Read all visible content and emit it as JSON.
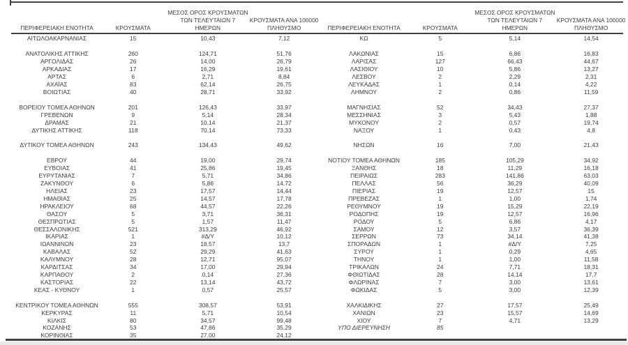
{
  "report": {
    "columns": [
      "ΠΕΡΙΦΕΡΕΙΑΚΗ ΕΝΟΤΗΤΑ",
      "ΚΡΟΥΣΜΑΤΑ",
      "ΜΕΣΟΣ ΟΡΟΣ ΚΡΟΥΣΜΑΤΩΝ\nΤΩΝ ΤΕΛΕΥΤΑΙΩΝ 7\nΗΜΕΡΩΝ",
      "ΚΡΟΥΣΜΑΤΑ ΑΝΑ 100000\nΠΛΗΘΥΣΜΟ"
    ],
    "na_text": "#Δ/Υ",
    "colors": {
      "text": "#3b3b3b",
      "rule": "#424242",
      "page_bg": "#ffffff",
      "footer_strip": "#e9e9e9"
    },
    "left_rows": [
      {
        "region": "ΑΙΤΩΛΟΑΚΑΡΝΑΝΙΑΣ",
        "cases": "15",
        "avg7": "10,43",
        "per100k": "7,12"
      },
      {
        "blank": true
      },
      {
        "region": "ΑΝΑΤΟΛΙΚΗΣ ΑΤΤΙΚΗΣ",
        "cases": "260",
        "avg7": "124,71",
        "per100k": "51,76"
      },
      {
        "region": "ΑΡΓΟΛΙΔΑΣ",
        "cases": "26",
        "avg7": "14,00",
        "per100k": "26,79"
      },
      {
        "region": "ΑΡΚΑΔΙΑΣ",
        "cases": "17",
        "avg7": "16,29",
        "per100k": "19,61"
      },
      {
        "region": "ΑΡΤΑΣ",
        "cases": "6",
        "avg7": "2,71",
        "per100k": "8,84"
      },
      {
        "region": "ΑΧΑΪΑΣ",
        "cases": "83",
        "avg7": "62,14",
        "per100k": "26,75"
      },
      {
        "region": "ΒΟΙΩΤΙΑΣ",
        "cases": "40",
        "avg7": "28,71",
        "per100k": "33,92"
      },
      {
        "blank": true
      },
      {
        "region": "ΒΟΡΕΙΟΥ ΤΟΜΕΑ ΑΘΗΝΩΝ",
        "cases": "201",
        "avg7": "126,43",
        "per100k": "33,97"
      },
      {
        "region": "ΓΡΕΒΕΝΩΝ",
        "cases": "9",
        "avg7": "5,14",
        "per100k": "28,34"
      },
      {
        "region": "ΔΡΑΜΑΣ",
        "cases": "21",
        "avg7": "10,14",
        "per100k": "21,37"
      },
      {
        "region": "ΔΥΤΙΚΗΣ ΑΤΤΙΚΗΣ",
        "cases": "118",
        "avg7": "70,14",
        "per100k": "73,33"
      },
      {
        "blank": true
      },
      {
        "region": "ΔΥΤΙΚΟΥ ΤΟΜΕΑ ΑΘΗΝΩΝ",
        "cases": "243",
        "avg7": "134,43",
        "per100k": "49,62"
      },
      {
        "blank": true
      },
      {
        "region": "ΕΒΡΟΥ",
        "cases": "44",
        "avg7": "19,00",
        "per100k": "29,74"
      },
      {
        "region": "ΕΥΒΟΙΑΣ",
        "cases": "41",
        "avg7": "25,86",
        "per100k": "19,45"
      },
      {
        "region": "ΕΥΡΥΤΑΝΙΑΣ",
        "cases": "7",
        "avg7": "5,71",
        "per100k": "34,86"
      },
      {
        "region": "ΖΑΚΥΝΘΟΥ",
        "cases": "6",
        "avg7": "5,86",
        "per100k": "14,72"
      },
      {
        "region": "ΗΛΕΙΑΣ",
        "cases": "23",
        "avg7": "17,57",
        "per100k": "14,44"
      },
      {
        "region": "ΗΜΑΘΙΑΣ",
        "cases": "25",
        "avg7": "14,57",
        "per100k": "17,78"
      },
      {
        "region": "ΗΡΑΚΛΕΙΟΥ",
        "cases": "68",
        "avg7": "44,57",
        "per100k": "22,26"
      },
      {
        "region": "ΘΑΣΟΥ",
        "cases": "5",
        "avg7": "3,71",
        "per100k": "36,31"
      },
      {
        "region": "ΘΕΣΠΡΩΤΙΑΣ",
        "cases": "5",
        "avg7": "1,57",
        "per100k": "11,47"
      },
      {
        "region": "ΘΕΣΣΑΛΟΝΙΚΗΣ",
        "cases": "521",
        "avg7": "313,29",
        "per100k": "46,92"
      },
      {
        "region": "ΙΚΑΡΙΑΣ",
        "cases": "1",
        "avg7": "#Δ/Υ",
        "per100k": "10,12"
      },
      {
        "region": "ΙΩΑΝΝΙΝΩΝ",
        "cases": "23",
        "avg7": "18,57",
        "per100k": "13,7"
      },
      {
        "region": "ΚΑΒΑΛΑΣ",
        "cases": "52",
        "avg7": "29,29",
        "per100k": "41,63"
      },
      {
        "region": "ΚΑΛΥΜΝΟΥ",
        "cases": "28",
        "avg7": "12,71",
        "per100k": "95,07"
      },
      {
        "region": "ΚΑΡΔΙΤΣΑΣ",
        "cases": "34",
        "avg7": "17,00",
        "per100k": "29,94"
      },
      {
        "region": "ΚΑΡΠΑΘΟΥ",
        "cases": "2",
        "avg7": "0,14",
        "per100k": "27,36"
      },
      {
        "region": "ΚΑΣΤΟΡΙΑΣ",
        "cases": "22",
        "avg7": "13,14",
        "per100k": "43,72"
      },
      {
        "region": "ΚΕΑΣ - ΚΥΘΝΟΥ",
        "cases": "1",
        "avg7": "0,57",
        "per100k": "25,57"
      },
      {
        "blank": true
      },
      {
        "region": "ΚΕΝΤΡΙΚΟΥ ΤΟΜΕΑ ΑΘΗΝΩΝ",
        "cases": "555",
        "avg7": "308,57",
        "per100k": "53,91"
      },
      {
        "region": "ΚΕΡΚΥΡΑΣ",
        "cases": "11",
        "avg7": "5,71",
        "per100k": "10,54"
      },
      {
        "region": "ΚΙΛΚΙΣ",
        "cases": "80",
        "avg7": "34,57",
        "per100k": "99,48"
      },
      {
        "region": "ΚΟΖΑΝΗΣ",
        "cases": "53",
        "avg7": "47,86",
        "per100k": "35,29"
      },
      {
        "region": "ΚΟΡΙΝΘΙΑΣ",
        "cases": "35",
        "avg7": "27,00",
        "per100k": "24,12"
      }
    ],
    "right_rows": [
      {
        "region": "ΚΩ",
        "cases": "5",
        "avg7": "5,14",
        "per100k": "14,54"
      },
      {
        "blank": true
      },
      {
        "region": "ΛΑΚΩΝΙΑΣ",
        "cases": "15",
        "avg7": "6,86",
        "per100k": "16,83"
      },
      {
        "region": "ΛΑΡΙΣΑΣ",
        "cases": "127",
        "avg7": "66,43",
        "per100k": "44,67"
      },
      {
        "region": "ΛΑΣΙΘΙΟΥ",
        "cases": "10",
        "avg7": "5,86",
        "per100k": "13,27"
      },
      {
        "region": "ΛΕΣΒΟΥ",
        "cases": "2",
        "avg7": "2,29",
        "per100k": "2,31"
      },
      {
        "region": "ΛΕΥΚΑΔΑΣ",
        "cases": "1",
        "avg7": "0,14",
        "per100k": "4,22"
      },
      {
        "region": "ΛΗΜΝΟΥ",
        "cases": "2",
        "avg7": "0,86",
        "per100k": "11,59"
      },
      {
        "blank": true
      },
      {
        "region": "ΜΑΓΝΗΣΙΑΣ",
        "cases": "52",
        "avg7": "34,43",
        "per100k": "27,37"
      },
      {
        "region": "ΜΕΣΣΗΝΙΑΣ",
        "cases": "3",
        "avg7": "5,43",
        "per100k": "1,88"
      },
      {
        "region": "ΜΥΚΟΝΟΥ",
        "cases": "2",
        "avg7": "0,57",
        "per100k": "19,74"
      },
      {
        "region": "ΝΑΞΟΥ",
        "cases": "1",
        "avg7": "0,43",
        "per100k": "4,8"
      },
      {
        "blank": true
      },
      {
        "region": "ΝΗΣΩΝ",
        "cases": "16",
        "avg7": "7,00",
        "per100k": "21,43"
      },
      {
        "blank": true
      },
      {
        "region": "ΝΟΤΙΟΥ ΤΟΜΕΑ ΑΘΗΝΩΝ",
        "cases": "185",
        "avg7": "105,29",
        "per100k": "34,92"
      },
      {
        "region": "ΞΑΝΘΗΣ",
        "cases": "18",
        "avg7": "11,29",
        "per100k": "16,18"
      },
      {
        "region": "ΠΕΙΡΑΙΩΣ",
        "cases": "283",
        "avg7": "141,86",
        "per100k": "63,03"
      },
      {
        "region": "ΠΕΛΛΑΣ",
        "cases": "56",
        "avg7": "36,29",
        "per100k": "40,09"
      },
      {
        "region": "ΠΙΕΡΙΑΣ",
        "cases": "19",
        "avg7": "12,57",
        "per100k": "15"
      },
      {
        "region": "ΠΡΕΒΕΖΑΣ",
        "cases": "1",
        "avg7": "1,00",
        "per100k": "1,74"
      },
      {
        "region": "ΡΕΘΥΜΝΟΥ",
        "cases": "19",
        "avg7": "15,29",
        "per100k": "22,19"
      },
      {
        "region": "ΡΟΔΟΠΗΣ",
        "cases": "19",
        "avg7": "12,57",
        "per100k": "16,96"
      },
      {
        "region": "ΡΟΔΟΥ",
        "cases": "5",
        "avg7": "6,86",
        "per100k": "4,17"
      },
      {
        "region": "ΣΑΜΟΥ",
        "cases": "12",
        "avg7": "3,57",
        "per100k": "36,39"
      },
      {
        "region": "ΣΕΡΡΩΝ",
        "cases": "73",
        "avg7": "34,14",
        "per100k": "41,38"
      },
      {
        "region": "ΣΠΟΡΑΔΩΝ",
        "cases": "1",
        "avg7": "#Δ/Υ",
        "per100k": "7,25"
      },
      {
        "region": "ΣΥΡΟΥ",
        "cases": "1",
        "avg7": "0,29",
        "per100k": "4,65"
      },
      {
        "region": "ΤΗΝΟΥ",
        "cases": "1",
        "avg7": "1,00",
        "per100k": "11,58"
      },
      {
        "region": "ΤΡΙΚΑΛΩΝ",
        "cases": "24",
        "avg7": "7,71",
        "per100k": "18,31"
      },
      {
        "region": "ΦΘΙΩΤΙΔΑΣ",
        "cases": "28",
        "avg7": "14,14",
        "per100k": "17,7"
      },
      {
        "region": "ΦΛΩΡΙΝΑΣ",
        "cases": "7",
        "avg7": "3,00",
        "per100k": "13,61"
      },
      {
        "region": "ΦΩΚΙΔΑΣ",
        "cases": "5",
        "avg7": "3,00",
        "per100k": "12,39"
      },
      {
        "blank": true
      },
      {
        "region": "ΧΑΛΚΙΔΙΚΗΣ",
        "cases": "27",
        "avg7": "17,57",
        "per100k": "25,49"
      },
      {
        "region": "ΧΑΝΙΩΝ",
        "cases": "23",
        "avg7": "15,57",
        "per100k": "14,69"
      },
      {
        "region": "ΧΙΟΥ",
        "cases": "7",
        "avg7": "4,71",
        "per100k": "13,29"
      },
      {
        "region": "ΥΠΟ ΔΙΕΡΕΥΝΗΣΗ",
        "cases": "85",
        "avg7": "",
        "per100k": "",
        "italic": true
      }
    ]
  }
}
